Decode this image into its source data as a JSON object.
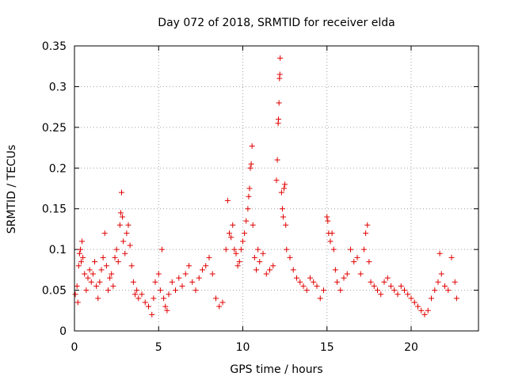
{
  "chart_data": {
    "type": "scatter",
    "title": "Day 072 of 2018, SRMTID for receiver elda",
    "xlabel": "GPS time / hours",
    "ylabel": "SRMTID / TECUs",
    "xlim": [
      0,
      24
    ],
    "ylim": [
      0,
      0.35
    ],
    "x_ticks": [
      0,
      5,
      10,
      15,
      20
    ],
    "x_tick_labels": [
      "0",
      "5",
      "10",
      "15",
      "20"
    ],
    "y_ticks": [
      0,
      0.05,
      0.1,
      0.15,
      0.2,
      0.25,
      0.3,
      0.35
    ],
    "y_tick_labels": [
      "0",
      "0.05",
      "0.1",
      "0.15",
      "0.2",
      "0.25",
      "0.3",
      "0.35"
    ],
    "grid": true,
    "marker": "+",
    "color": "#e00000",
    "series": [
      {
        "name": "SRMTID",
        "points": [
          [
            0.05,
            0.045
          ],
          [
            0.15,
            0.055
          ],
          [
            0.2,
            0.035
          ],
          [
            0.25,
            0.08
          ],
          [
            0.3,
            0.095
          ],
          [
            0.35,
            0.1
          ],
          [
            0.4,
            0.085
          ],
          [
            0.45,
            0.11
          ],
          [
            0.5,
            0.09
          ],
          [
            0.6,
            0.07
          ],
          [
            0.7,
            0.05
          ],
          [
            0.8,
            0.065
          ],
          [
            0.9,
            0.075
          ],
          [
            1.0,
            0.06
          ],
          [
            1.1,
            0.07
          ],
          [
            1.2,
            0.085
          ],
          [
            1.3,
            0.055
          ],
          [
            1.4,
            0.04
          ],
          [
            1.5,
            0.06
          ],
          [
            1.6,
            0.075
          ],
          [
            1.7,
            0.09
          ],
          [
            1.8,
            0.12
          ],
          [
            1.9,
            0.08
          ],
          [
            2.0,
            0.05
          ],
          [
            2.1,
            0.065
          ],
          [
            2.2,
            0.07
          ],
          [
            2.3,
            0.055
          ],
          [
            2.4,
            0.09
          ],
          [
            2.5,
            0.1
          ],
          [
            2.6,
            0.085
          ],
          [
            2.7,
            0.13
          ],
          [
            2.75,
            0.145
          ],
          [
            2.8,
            0.17
          ],
          [
            2.85,
            0.14
          ],
          [
            2.9,
            0.11
          ],
          [
            3.0,
            0.095
          ],
          [
            3.1,
            0.12
          ],
          [
            3.2,
            0.13
          ],
          [
            3.3,
            0.105
          ],
          [
            3.4,
            0.08
          ],
          [
            3.5,
            0.06
          ],
          [
            3.6,
            0.045
          ],
          [
            3.7,
            0.05
          ],
          [
            3.8,
            0.04
          ],
          [
            4.0,
            0.045
          ],
          [
            4.2,
            0.035
          ],
          [
            4.4,
            0.03
          ],
          [
            4.6,
            0.02
          ],
          [
            4.7,
            0.04
          ],
          [
            4.8,
            0.06
          ],
          [
            5.0,
            0.07
          ],
          [
            5.1,
            0.05
          ],
          [
            5.2,
            0.1
          ],
          [
            5.3,
            0.04
          ],
          [
            5.4,
            0.03
          ],
          [
            5.5,
            0.025
          ],
          [
            5.6,
            0.045
          ],
          [
            5.8,
            0.06
          ],
          [
            6.0,
            0.05
          ],
          [
            6.2,
            0.065
          ],
          [
            6.4,
            0.055
          ],
          [
            6.6,
            0.07
          ],
          [
            6.8,
            0.08
          ],
          [
            7.0,
            0.06
          ],
          [
            7.2,
            0.05
          ],
          [
            7.4,
            0.065
          ],
          [
            7.6,
            0.075
          ],
          [
            7.8,
            0.08
          ],
          [
            8.0,
            0.09
          ],
          [
            8.2,
            0.07
          ],
          [
            8.4,
            0.04
          ],
          [
            8.6,
            0.03
          ],
          [
            8.8,
            0.035
          ],
          [
            9.0,
            0.1
          ],
          [
            9.1,
            0.16
          ],
          [
            9.2,
            0.12
          ],
          [
            9.3,
            0.115
          ],
          [
            9.4,
            0.13
          ],
          [
            9.5,
            0.1
          ],
          [
            9.6,
            0.095
          ],
          [
            9.7,
            0.08
          ],
          [
            9.8,
            0.085
          ],
          [
            9.9,
            0.1
          ],
          [
            10.0,
            0.11
          ],
          [
            10.1,
            0.12
          ],
          [
            10.2,
            0.135
          ],
          [
            10.3,
            0.15
          ],
          [
            10.35,
            0.165
          ],
          [
            10.4,
            0.175
          ],
          [
            10.45,
            0.2
          ],
          [
            10.5,
            0.205
          ],
          [
            10.55,
            0.227
          ],
          [
            10.6,
            0.13
          ],
          [
            10.7,
            0.09
          ],
          [
            10.8,
            0.075
          ],
          [
            10.9,
            0.1
          ],
          [
            11.0,
            0.085
          ],
          [
            11.2,
            0.095
          ],
          [
            11.4,
            0.07
          ],
          [
            11.6,
            0.075
          ],
          [
            11.8,
            0.08
          ],
          [
            12.0,
            0.185
          ],
          [
            12.05,
            0.21
          ],
          [
            12.1,
            0.255
          ],
          [
            12.12,
            0.26
          ],
          [
            12.15,
            0.28
          ],
          [
            12.18,
            0.31
          ],
          [
            12.2,
            0.315
          ],
          [
            12.22,
            0.335
          ],
          [
            12.3,
            0.17
          ],
          [
            12.35,
            0.15
          ],
          [
            12.4,
            0.14
          ],
          [
            12.45,
            0.175
          ],
          [
            12.5,
            0.18
          ],
          [
            12.55,
            0.13
          ],
          [
            12.6,
            0.1
          ],
          [
            12.8,
            0.09
          ],
          [
            13.0,
            0.075
          ],
          [
            13.2,
            0.065
          ],
          [
            13.4,
            0.06
          ],
          [
            13.6,
            0.055
          ],
          [
            13.8,
            0.05
          ],
          [
            14.0,
            0.065
          ],
          [
            14.2,
            0.06
          ],
          [
            14.4,
            0.055
          ],
          [
            14.6,
            0.04
          ],
          [
            14.8,
            0.05
          ],
          [
            15.0,
            0.14
          ],
          [
            15.05,
            0.135
          ],
          [
            15.1,
            0.12
          ],
          [
            15.2,
            0.11
          ],
          [
            15.3,
            0.12
          ],
          [
            15.4,
            0.1
          ],
          [
            15.5,
            0.075
          ],
          [
            15.6,
            0.06
          ],
          [
            15.8,
            0.05
          ],
          [
            16.0,
            0.065
          ],
          [
            16.2,
            0.07
          ],
          [
            16.4,
            0.1
          ],
          [
            16.6,
            0.085
          ],
          [
            16.8,
            0.09
          ],
          [
            17.0,
            0.07
          ],
          [
            17.2,
            0.1
          ],
          [
            17.3,
            0.12
          ],
          [
            17.4,
            0.13
          ],
          [
            17.5,
            0.085
          ],
          [
            17.6,
            0.06
          ],
          [
            17.8,
            0.055
          ],
          [
            18.0,
            0.05
          ],
          [
            18.2,
            0.045
          ],
          [
            18.4,
            0.06
          ],
          [
            18.6,
            0.065
          ],
          [
            18.8,
            0.055
          ],
          [
            19.0,
            0.05
          ],
          [
            19.2,
            0.045
          ],
          [
            19.4,
            0.055
          ],
          [
            19.6,
            0.05
          ],
          [
            19.8,
            0.045
          ],
          [
            20.0,
            0.04
          ],
          [
            20.2,
            0.035
          ],
          [
            20.4,
            0.03
          ],
          [
            20.6,
            0.025
          ],
          [
            20.8,
            0.02
          ],
          [
            21.0,
            0.025
          ],
          [
            21.2,
            0.04
          ],
          [
            21.4,
            0.05
          ],
          [
            21.6,
            0.06
          ],
          [
            21.7,
            0.095
          ],
          [
            21.8,
            0.07
          ],
          [
            22.0,
            0.055
          ],
          [
            22.2,
            0.05
          ],
          [
            22.4,
            0.09
          ],
          [
            22.6,
            0.06
          ],
          [
            22.7,
            0.04
          ]
        ]
      }
    ]
  }
}
